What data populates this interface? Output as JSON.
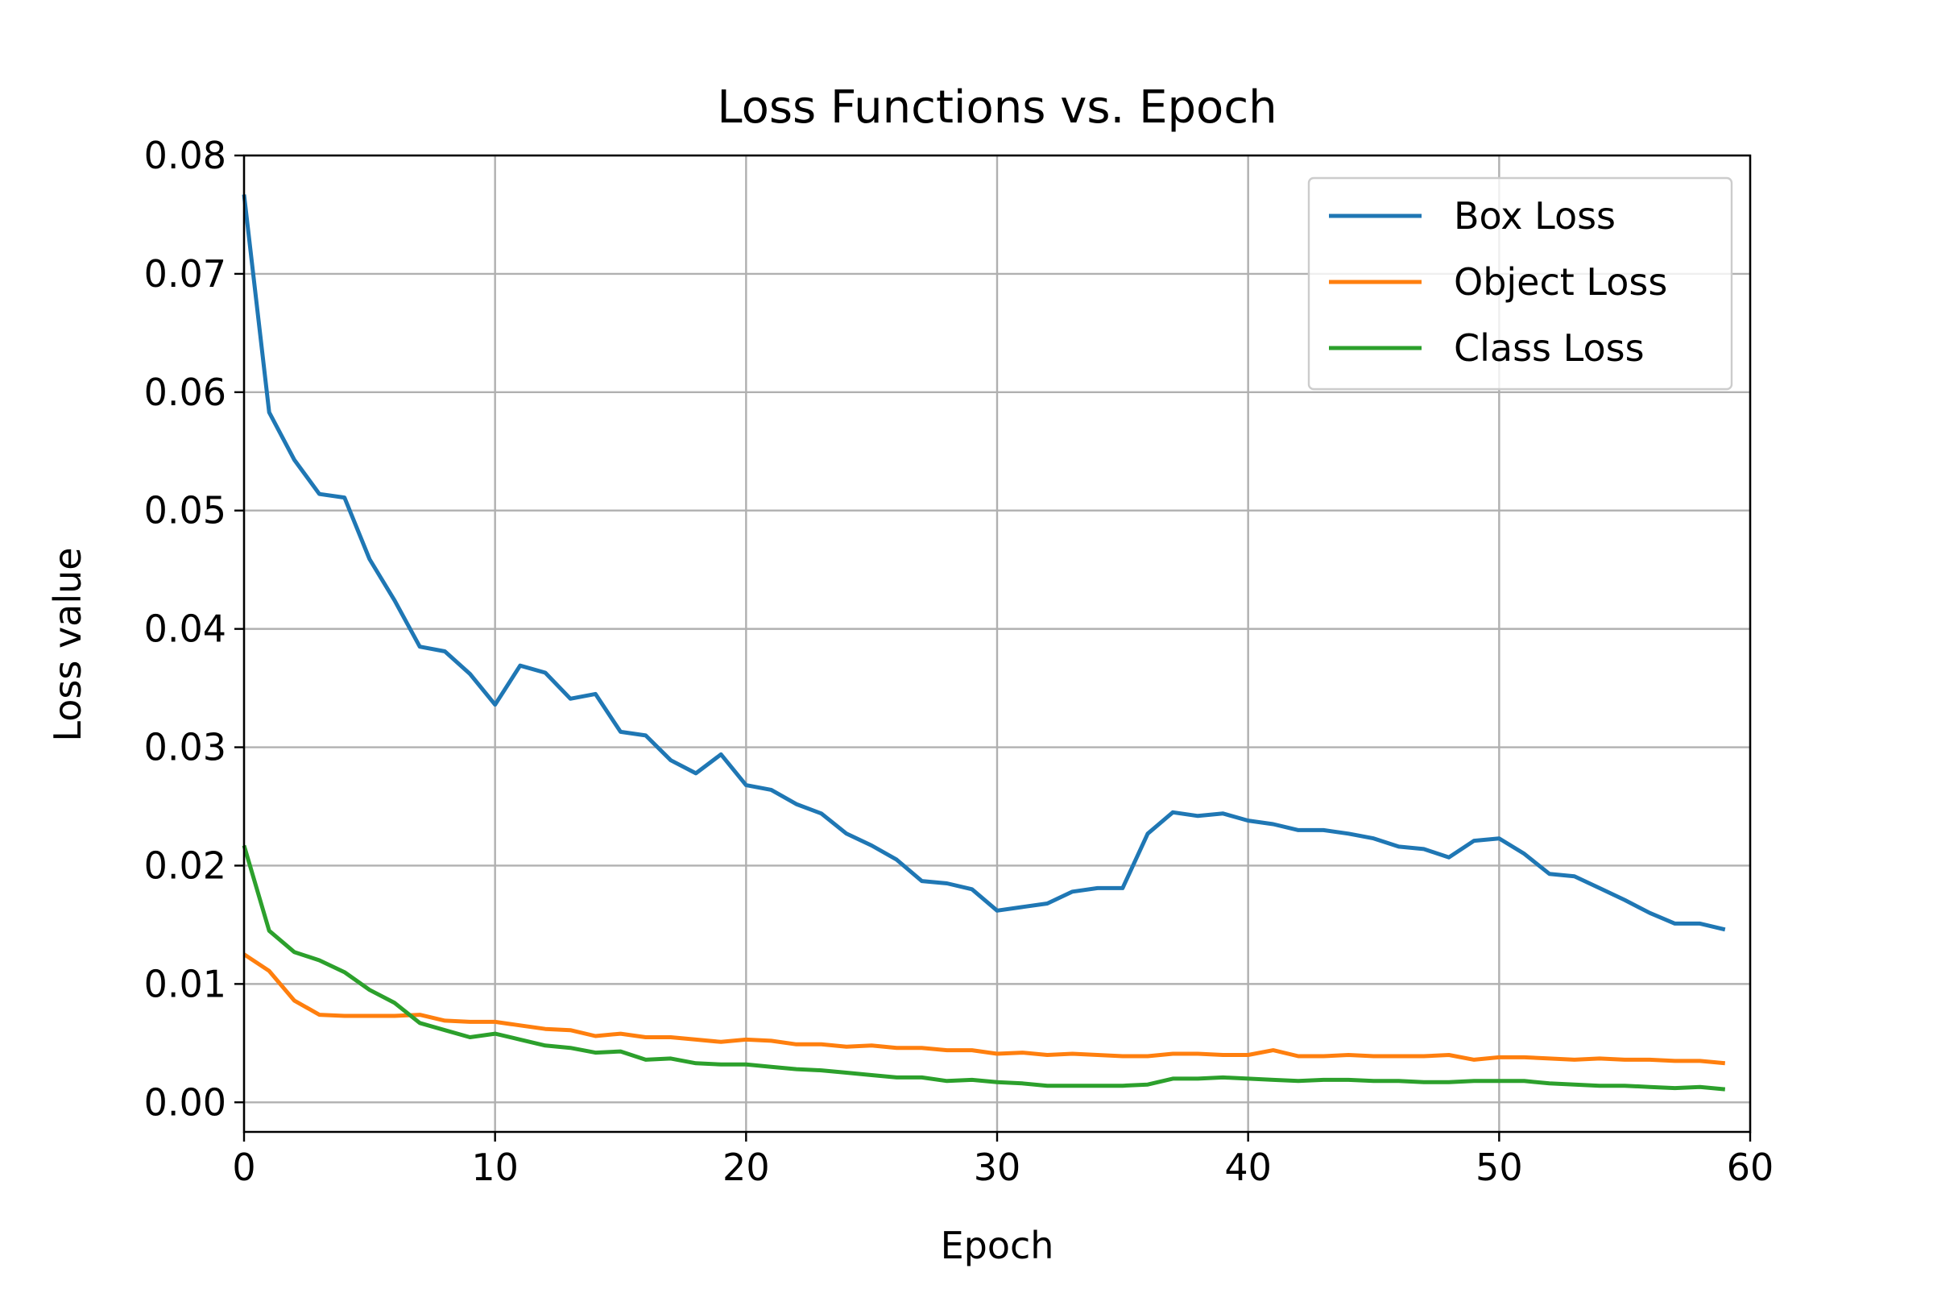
{
  "chart_data": {
    "type": "line",
    "title": "Loss Functions vs. Epoch",
    "xlabel": "Epoch",
    "ylabel": "Loss value",
    "xlim": [
      0,
      60
    ],
    "ylim": [
      -0.0025,
      0.08
    ],
    "xticks": [
      0,
      10,
      20,
      30,
      40,
      50,
      60
    ],
    "xtick_labels": [
      "0",
      "10",
      "20",
      "30",
      "40",
      "50",
      "60"
    ],
    "yticks": [
      0.0,
      0.01,
      0.02,
      0.03,
      0.04,
      0.05,
      0.06,
      0.07,
      0.08
    ],
    "ytick_labels": [
      "0.00",
      "0.01",
      "0.02",
      "0.03",
      "0.04",
      "0.05",
      "0.06",
      "0.07",
      "0.08"
    ],
    "grid": true,
    "legend_position": "top-right",
    "series": [
      {
        "name": "Box Loss",
        "color": "#1f77b4",
        "values": [
          0.0767,
          0.0583,
          0.0543,
          0.0514,
          0.0511,
          0.0459,
          0.0424,
          0.0385,
          0.0381,
          0.0362,
          0.0336,
          0.0369,
          0.0363,
          0.0341,
          0.0345,
          0.0313,
          0.031,
          0.0289,
          0.0278,
          0.0294,
          0.0268,
          0.0264,
          0.0252,
          0.0244,
          0.0227,
          0.0217,
          0.0205,
          0.0187,
          0.0185,
          0.018,
          0.0162,
          0.0165,
          0.0168,
          0.0178,
          0.0181,
          0.0181,
          0.0227,
          0.0245,
          0.0242,
          0.0244,
          0.0238,
          0.0235,
          0.023,
          0.023,
          0.0227,
          0.0223,
          0.0216,
          0.0214,
          0.0207,
          0.0221,
          0.0223,
          0.021,
          0.0193,
          0.0191,
          0.0181,
          0.0171,
          0.016,
          0.0151,
          0.0151,
          0.0146
        ]
      },
      {
        "name": "Object Loss",
        "color": "#ff7f0e",
        "values": [
          0.0125,
          0.0111,
          0.0086,
          0.0074,
          0.0073,
          0.0073,
          0.0073,
          0.0074,
          0.0069,
          0.0068,
          0.0068,
          0.0065,
          0.0062,
          0.0061,
          0.0056,
          0.0058,
          0.0055,
          0.0055,
          0.0053,
          0.0051,
          0.0053,
          0.0052,
          0.0049,
          0.0049,
          0.0047,
          0.0048,
          0.0046,
          0.0046,
          0.0044,
          0.0044,
          0.0041,
          0.0042,
          0.004,
          0.0041,
          0.004,
          0.0039,
          0.0039,
          0.0041,
          0.0041,
          0.004,
          0.004,
          0.0044,
          0.0039,
          0.0039,
          0.004,
          0.0039,
          0.0039,
          0.0039,
          0.004,
          0.0036,
          0.0038,
          0.0038,
          0.0037,
          0.0036,
          0.0037,
          0.0036,
          0.0036,
          0.0035,
          0.0035,
          0.0033
        ]
      },
      {
        "name": "Class Loss",
        "color": "#2ca02c",
        "values": [
          0.0217,
          0.0145,
          0.0127,
          0.012,
          0.011,
          0.0095,
          0.0084,
          0.0067,
          0.0061,
          0.0055,
          0.0058,
          0.0053,
          0.0048,
          0.0046,
          0.0042,
          0.0043,
          0.0036,
          0.0037,
          0.0033,
          0.0032,
          0.0032,
          0.003,
          0.0028,
          0.0027,
          0.0025,
          0.0023,
          0.0021,
          0.0021,
          0.0018,
          0.0019,
          0.0017,
          0.0016,
          0.0014,
          0.0014,
          0.0014,
          0.0014,
          0.0015,
          0.002,
          0.002,
          0.0021,
          0.002,
          0.0019,
          0.0018,
          0.0019,
          0.0019,
          0.0018,
          0.0018,
          0.0017,
          0.0017,
          0.0018,
          0.0018,
          0.0018,
          0.0016,
          0.0015,
          0.0014,
          0.0014,
          0.0013,
          0.0012,
          0.0013,
          0.0011
        ]
      }
    ]
  }
}
